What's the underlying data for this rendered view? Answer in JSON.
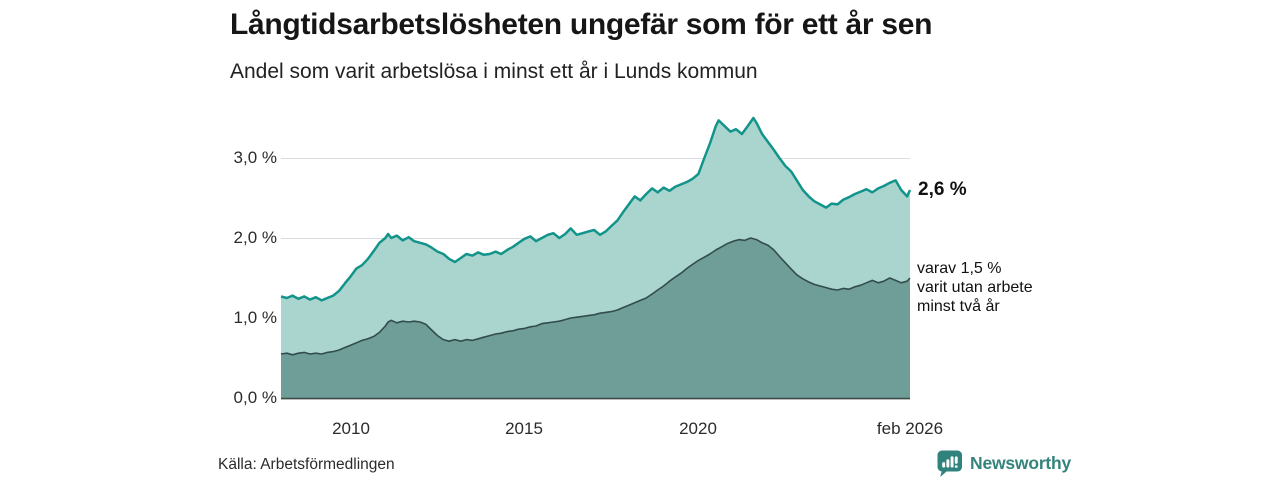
{
  "header": {
    "title": "Långtidsarbetslösheten ungefär som för ett år sen",
    "subtitle": "Andel som varit arbetslösa i minst ett år i Lunds kommun"
  },
  "annotations": {
    "total_end_label": "2,6 %",
    "subset_lines": [
      "varav 1,5 %",
      "varit utan arbete",
      "minst två år"
    ]
  },
  "footer": {
    "source": "Källa: Arbetsförmedlingen",
    "brand": "Newsworthy",
    "brand_icon": "newsworthy-speech-bubble-bar-chart-icon"
  },
  "colors": {
    "background": "#ffffff",
    "title_text": "#161616",
    "gridline": "#d9dce0",
    "axis_baseline": "#3c4a48",
    "total_line": "#12948b",
    "total_fill": "#a9d5ce",
    "subset_line": "#324d4b",
    "subset_fill": "#6f9e99",
    "brand_teal": "#34837c"
  },
  "chart_data": {
    "type": "area",
    "title": "Långtidsarbetslösheten ungefär som för ett år sen",
    "subtitle": "Andel som varit arbetslösa i minst ett år i Lunds kommun",
    "unit": "%",
    "grid": true,
    "xlim": [
      2008.0,
      2026.0833
    ],
    "ylim": [
      0,
      3.6
    ],
    "x_axis": {
      "ticks": [
        {
          "label": "2010",
          "year": 2010
        },
        {
          "label": "2015",
          "year": 2015
        },
        {
          "label": "2020",
          "year": 2020
        },
        {
          "label": "feb 2026",
          "year": 2026.0833
        }
      ]
    },
    "y_axis": {
      "ticks": [
        {
          "label": "0,0 %",
          "value": 0.0
        },
        {
          "label": "1,0 %",
          "value": 1.0
        },
        {
          "label": "2,0 %",
          "value": 2.0
        },
        {
          "label": "3,0 %",
          "value": 3.0
        }
      ]
    },
    "series": [
      {
        "name": "Andel som varit arbetslösa i minst ett år",
        "end_label": "2,6 %",
        "end_value": 2.6,
        "fill": "#a9d5ce",
        "stroke": "#12948b",
        "stroke_width": 2.5,
        "points": [
          [
            2008.0,
            1.27
          ],
          [
            2008.17,
            1.25
          ],
          [
            2008.33,
            1.28
          ],
          [
            2008.5,
            1.24
          ],
          [
            2008.67,
            1.27
          ],
          [
            2008.83,
            1.23
          ],
          [
            2009.0,
            1.26
          ],
          [
            2009.17,
            1.22
          ],
          [
            2009.33,
            1.25
          ],
          [
            2009.5,
            1.28
          ],
          [
            2009.67,
            1.34
          ],
          [
            2009.83,
            1.43
          ],
          [
            2010.0,
            1.52
          ],
          [
            2010.17,
            1.62
          ],
          [
            2010.33,
            1.66
          ],
          [
            2010.5,
            1.74
          ],
          [
            2010.67,
            1.84
          ],
          [
            2010.83,
            1.94
          ],
          [
            2011.0,
            2.0
          ],
          [
            2011.08,
            2.05
          ],
          [
            2011.17,
            2.0
          ],
          [
            2011.33,
            2.03
          ],
          [
            2011.5,
            1.97
          ],
          [
            2011.67,
            2.01
          ],
          [
            2011.83,
            1.96
          ],
          [
            2012.0,
            1.94
          ],
          [
            2012.17,
            1.92
          ],
          [
            2012.33,
            1.88
          ],
          [
            2012.5,
            1.83
          ],
          [
            2012.67,
            1.8
          ],
          [
            2012.83,
            1.74
          ],
          [
            2013.0,
            1.7
          ],
          [
            2013.17,
            1.75
          ],
          [
            2013.33,
            1.8
          ],
          [
            2013.5,
            1.78
          ],
          [
            2013.67,
            1.82
          ],
          [
            2013.83,
            1.79
          ],
          [
            2014.0,
            1.8
          ],
          [
            2014.17,
            1.83
          ],
          [
            2014.33,
            1.8
          ],
          [
            2014.5,
            1.85
          ],
          [
            2014.67,
            1.89
          ],
          [
            2014.83,
            1.94
          ],
          [
            2015.0,
            1.99
          ],
          [
            2015.17,
            2.02
          ],
          [
            2015.33,
            1.96
          ],
          [
            2015.5,
            2.0
          ],
          [
            2015.67,
            2.04
          ],
          [
            2015.83,
            2.06
          ],
          [
            2016.0,
            2.0
          ],
          [
            2016.17,
            2.05
          ],
          [
            2016.33,
            2.12
          ],
          [
            2016.5,
            2.04
          ],
          [
            2016.67,
            2.06
          ],
          [
            2016.83,
            2.08
          ],
          [
            2017.0,
            2.1
          ],
          [
            2017.17,
            2.04
          ],
          [
            2017.33,
            2.08
          ],
          [
            2017.5,
            2.15
          ],
          [
            2017.67,
            2.22
          ],
          [
            2017.83,
            2.32
          ],
          [
            2018.0,
            2.42
          ],
          [
            2018.17,
            2.52
          ],
          [
            2018.33,
            2.47
          ],
          [
            2018.5,
            2.55
          ],
          [
            2018.67,
            2.62
          ],
          [
            2018.83,
            2.57
          ],
          [
            2019.0,
            2.63
          ],
          [
            2019.17,
            2.59
          ],
          [
            2019.33,
            2.64
          ],
          [
            2019.5,
            2.67
          ],
          [
            2019.67,
            2.7
          ],
          [
            2019.83,
            2.74
          ],
          [
            2020.0,
            2.8
          ],
          [
            2020.17,
            3.0
          ],
          [
            2020.33,
            3.18
          ],
          [
            2020.5,
            3.4
          ],
          [
            2020.58,
            3.47
          ],
          [
            2020.75,
            3.4
          ],
          [
            2020.92,
            3.33
          ],
          [
            2021.08,
            3.36
          ],
          [
            2021.25,
            3.3
          ],
          [
            2021.42,
            3.4
          ],
          [
            2021.58,
            3.5
          ],
          [
            2021.67,
            3.44
          ],
          [
            2021.83,
            3.3
          ],
          [
            2022.0,
            3.2
          ],
          [
            2022.17,
            3.1
          ],
          [
            2022.33,
            3.0
          ],
          [
            2022.5,
            2.9
          ],
          [
            2022.67,
            2.83
          ],
          [
            2022.83,
            2.72
          ],
          [
            2023.0,
            2.6
          ],
          [
            2023.17,
            2.52
          ],
          [
            2023.33,
            2.46
          ],
          [
            2023.5,
            2.42
          ],
          [
            2023.67,
            2.38
          ],
          [
            2023.83,
            2.43
          ],
          [
            2024.0,
            2.42
          ],
          [
            2024.17,
            2.48
          ],
          [
            2024.33,
            2.51
          ],
          [
            2024.5,
            2.55
          ],
          [
            2024.67,
            2.58
          ],
          [
            2024.83,
            2.61
          ],
          [
            2025.0,
            2.57
          ],
          [
            2025.17,
            2.62
          ],
          [
            2025.33,
            2.65
          ],
          [
            2025.5,
            2.69
          ],
          [
            2025.67,
            2.72
          ],
          [
            2025.83,
            2.6
          ],
          [
            2026.0,
            2.52
          ],
          [
            2026.0833,
            2.6
          ]
        ]
      },
      {
        "name": "varav varit utan arbete minst två år",
        "end_label": "1,5 %",
        "end_value": 1.5,
        "fill": "#6f9e99",
        "stroke": "#324d4b",
        "stroke_width": 1.6,
        "points": [
          [
            2008.0,
            0.55
          ],
          [
            2008.17,
            0.56
          ],
          [
            2008.33,
            0.54
          ],
          [
            2008.5,
            0.56
          ],
          [
            2008.67,
            0.57
          ],
          [
            2008.83,
            0.55
          ],
          [
            2009.0,
            0.56
          ],
          [
            2009.17,
            0.55
          ],
          [
            2009.33,
            0.57
          ],
          [
            2009.5,
            0.58
          ],
          [
            2009.67,
            0.6
          ],
          [
            2009.83,
            0.63
          ],
          [
            2010.0,
            0.66
          ],
          [
            2010.17,
            0.69
          ],
          [
            2010.33,
            0.72
          ],
          [
            2010.5,
            0.74
          ],
          [
            2010.67,
            0.77
          ],
          [
            2010.83,
            0.82
          ],
          [
            2011.0,
            0.9
          ],
          [
            2011.08,
            0.95
          ],
          [
            2011.17,
            0.97
          ],
          [
            2011.33,
            0.94
          ],
          [
            2011.5,
            0.96
          ],
          [
            2011.67,
            0.95
          ],
          [
            2011.83,
            0.96
          ],
          [
            2012.0,
            0.95
          ],
          [
            2012.17,
            0.92
          ],
          [
            2012.33,
            0.85
          ],
          [
            2012.5,
            0.78
          ],
          [
            2012.67,
            0.73
          ],
          [
            2012.83,
            0.71
          ],
          [
            2013.0,
            0.73
          ],
          [
            2013.17,
            0.71
          ],
          [
            2013.33,
            0.73
          ],
          [
            2013.5,
            0.72
          ],
          [
            2013.67,
            0.74
          ],
          [
            2013.83,
            0.76
          ],
          [
            2014.0,
            0.78
          ],
          [
            2014.17,
            0.8
          ],
          [
            2014.33,
            0.81
          ],
          [
            2014.5,
            0.83
          ],
          [
            2014.67,
            0.84
          ],
          [
            2014.83,
            0.86
          ],
          [
            2015.0,
            0.87
          ],
          [
            2015.17,
            0.89
          ],
          [
            2015.33,
            0.9
          ],
          [
            2015.5,
            0.93
          ],
          [
            2015.67,
            0.94
          ],
          [
            2015.83,
            0.95
          ],
          [
            2016.0,
            0.96
          ],
          [
            2016.17,
            0.98
          ],
          [
            2016.33,
            1.0
          ],
          [
            2016.5,
            1.01
          ],
          [
            2016.67,
            1.02
          ],
          [
            2016.83,
            1.03
          ],
          [
            2017.0,
            1.04
          ],
          [
            2017.17,
            1.06
          ],
          [
            2017.33,
            1.07
          ],
          [
            2017.5,
            1.08
          ],
          [
            2017.67,
            1.1
          ],
          [
            2017.83,
            1.13
          ],
          [
            2018.0,
            1.16
          ],
          [
            2018.17,
            1.19
          ],
          [
            2018.33,
            1.22
          ],
          [
            2018.5,
            1.25
          ],
          [
            2018.67,
            1.3
          ],
          [
            2018.83,
            1.35
          ],
          [
            2019.0,
            1.4
          ],
          [
            2019.17,
            1.46
          ],
          [
            2019.33,
            1.51
          ],
          [
            2019.5,
            1.56
          ],
          [
            2019.67,
            1.62
          ],
          [
            2019.83,
            1.67
          ],
          [
            2020.0,
            1.72
          ],
          [
            2020.17,
            1.76
          ],
          [
            2020.33,
            1.8
          ],
          [
            2020.5,
            1.85
          ],
          [
            2020.67,
            1.89
          ],
          [
            2020.83,
            1.93
          ],
          [
            2021.0,
            1.96
          ],
          [
            2021.17,
            1.98
          ],
          [
            2021.33,
            1.97
          ],
          [
            2021.5,
            2.0
          ],
          [
            2021.67,
            1.98
          ],
          [
            2021.83,
            1.94
          ],
          [
            2022.0,
            1.91
          ],
          [
            2022.17,
            1.85
          ],
          [
            2022.33,
            1.77
          ],
          [
            2022.5,
            1.69
          ],
          [
            2022.67,
            1.61
          ],
          [
            2022.83,
            1.54
          ],
          [
            2023.0,
            1.49
          ],
          [
            2023.17,
            1.45
          ],
          [
            2023.33,
            1.42
          ],
          [
            2023.5,
            1.4
          ],
          [
            2023.67,
            1.38
          ],
          [
            2023.83,
            1.36
          ],
          [
            2024.0,
            1.35
          ],
          [
            2024.17,
            1.37
          ],
          [
            2024.33,
            1.36
          ],
          [
            2024.5,
            1.39
          ],
          [
            2024.67,
            1.41
          ],
          [
            2024.83,
            1.44
          ],
          [
            2025.0,
            1.47
          ],
          [
            2025.17,
            1.44
          ],
          [
            2025.33,
            1.46
          ],
          [
            2025.5,
            1.5
          ],
          [
            2025.67,
            1.47
          ],
          [
            2025.83,
            1.44
          ],
          [
            2026.0,
            1.46
          ],
          [
            2026.0833,
            1.5
          ]
        ]
      }
    ]
  }
}
